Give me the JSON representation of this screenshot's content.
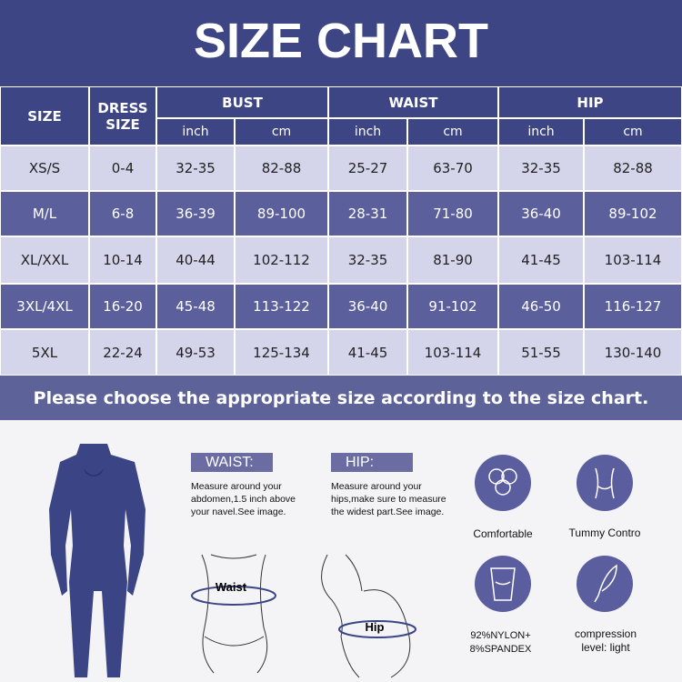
{
  "title": "SIZE CHART",
  "table": {
    "headers": [
      "SIZE",
      "DRESS SIZE"
    ],
    "groups": [
      "BUST",
      "WAIST",
      "HIP"
    ],
    "units": [
      "inch",
      "cm",
      "inch",
      "cm",
      "inch",
      "cm"
    ],
    "rows": [
      [
        "XS/S",
        "0-4",
        "32-35",
        "82-88",
        "25-27",
        "63-70",
        "32-35",
        "82-88"
      ],
      [
        "M/L",
        "6-8",
        "36-39",
        "89-100",
        "28-31",
        "71-80",
        "36-40",
        "89-102"
      ],
      [
        "XL/XXL",
        "10-14",
        "40-44",
        "102-112",
        "32-35",
        "81-90",
        "41-45",
        "103-114"
      ],
      [
        "3XL/4XL",
        "16-20",
        "45-48",
        "113-122",
        "36-40",
        "91-102",
        "46-50",
        "116-127"
      ],
      [
        "5XL",
        "22-24",
        "49-53",
        "125-134",
        "41-45",
        "103-114",
        "51-55",
        "130-140"
      ]
    ]
  },
  "banner": "Please choose the appropriate size according to the size chart.",
  "measure": [
    {
      "tag": "WAIST:",
      "text": "Measure around your abdomen,1.5 inch above your navel.See image.",
      "label": "Waist"
    },
    {
      "tag": "HIP:",
      "text": "Measure around your hips,make sure to measure the widest part.See image.",
      "label": "Hip"
    }
  ],
  "features": [
    "Comfortable",
    "Tummy Contro",
    "92%NYLON+ 8%SPANDEX",
    "compression level: light"
  ]
}
